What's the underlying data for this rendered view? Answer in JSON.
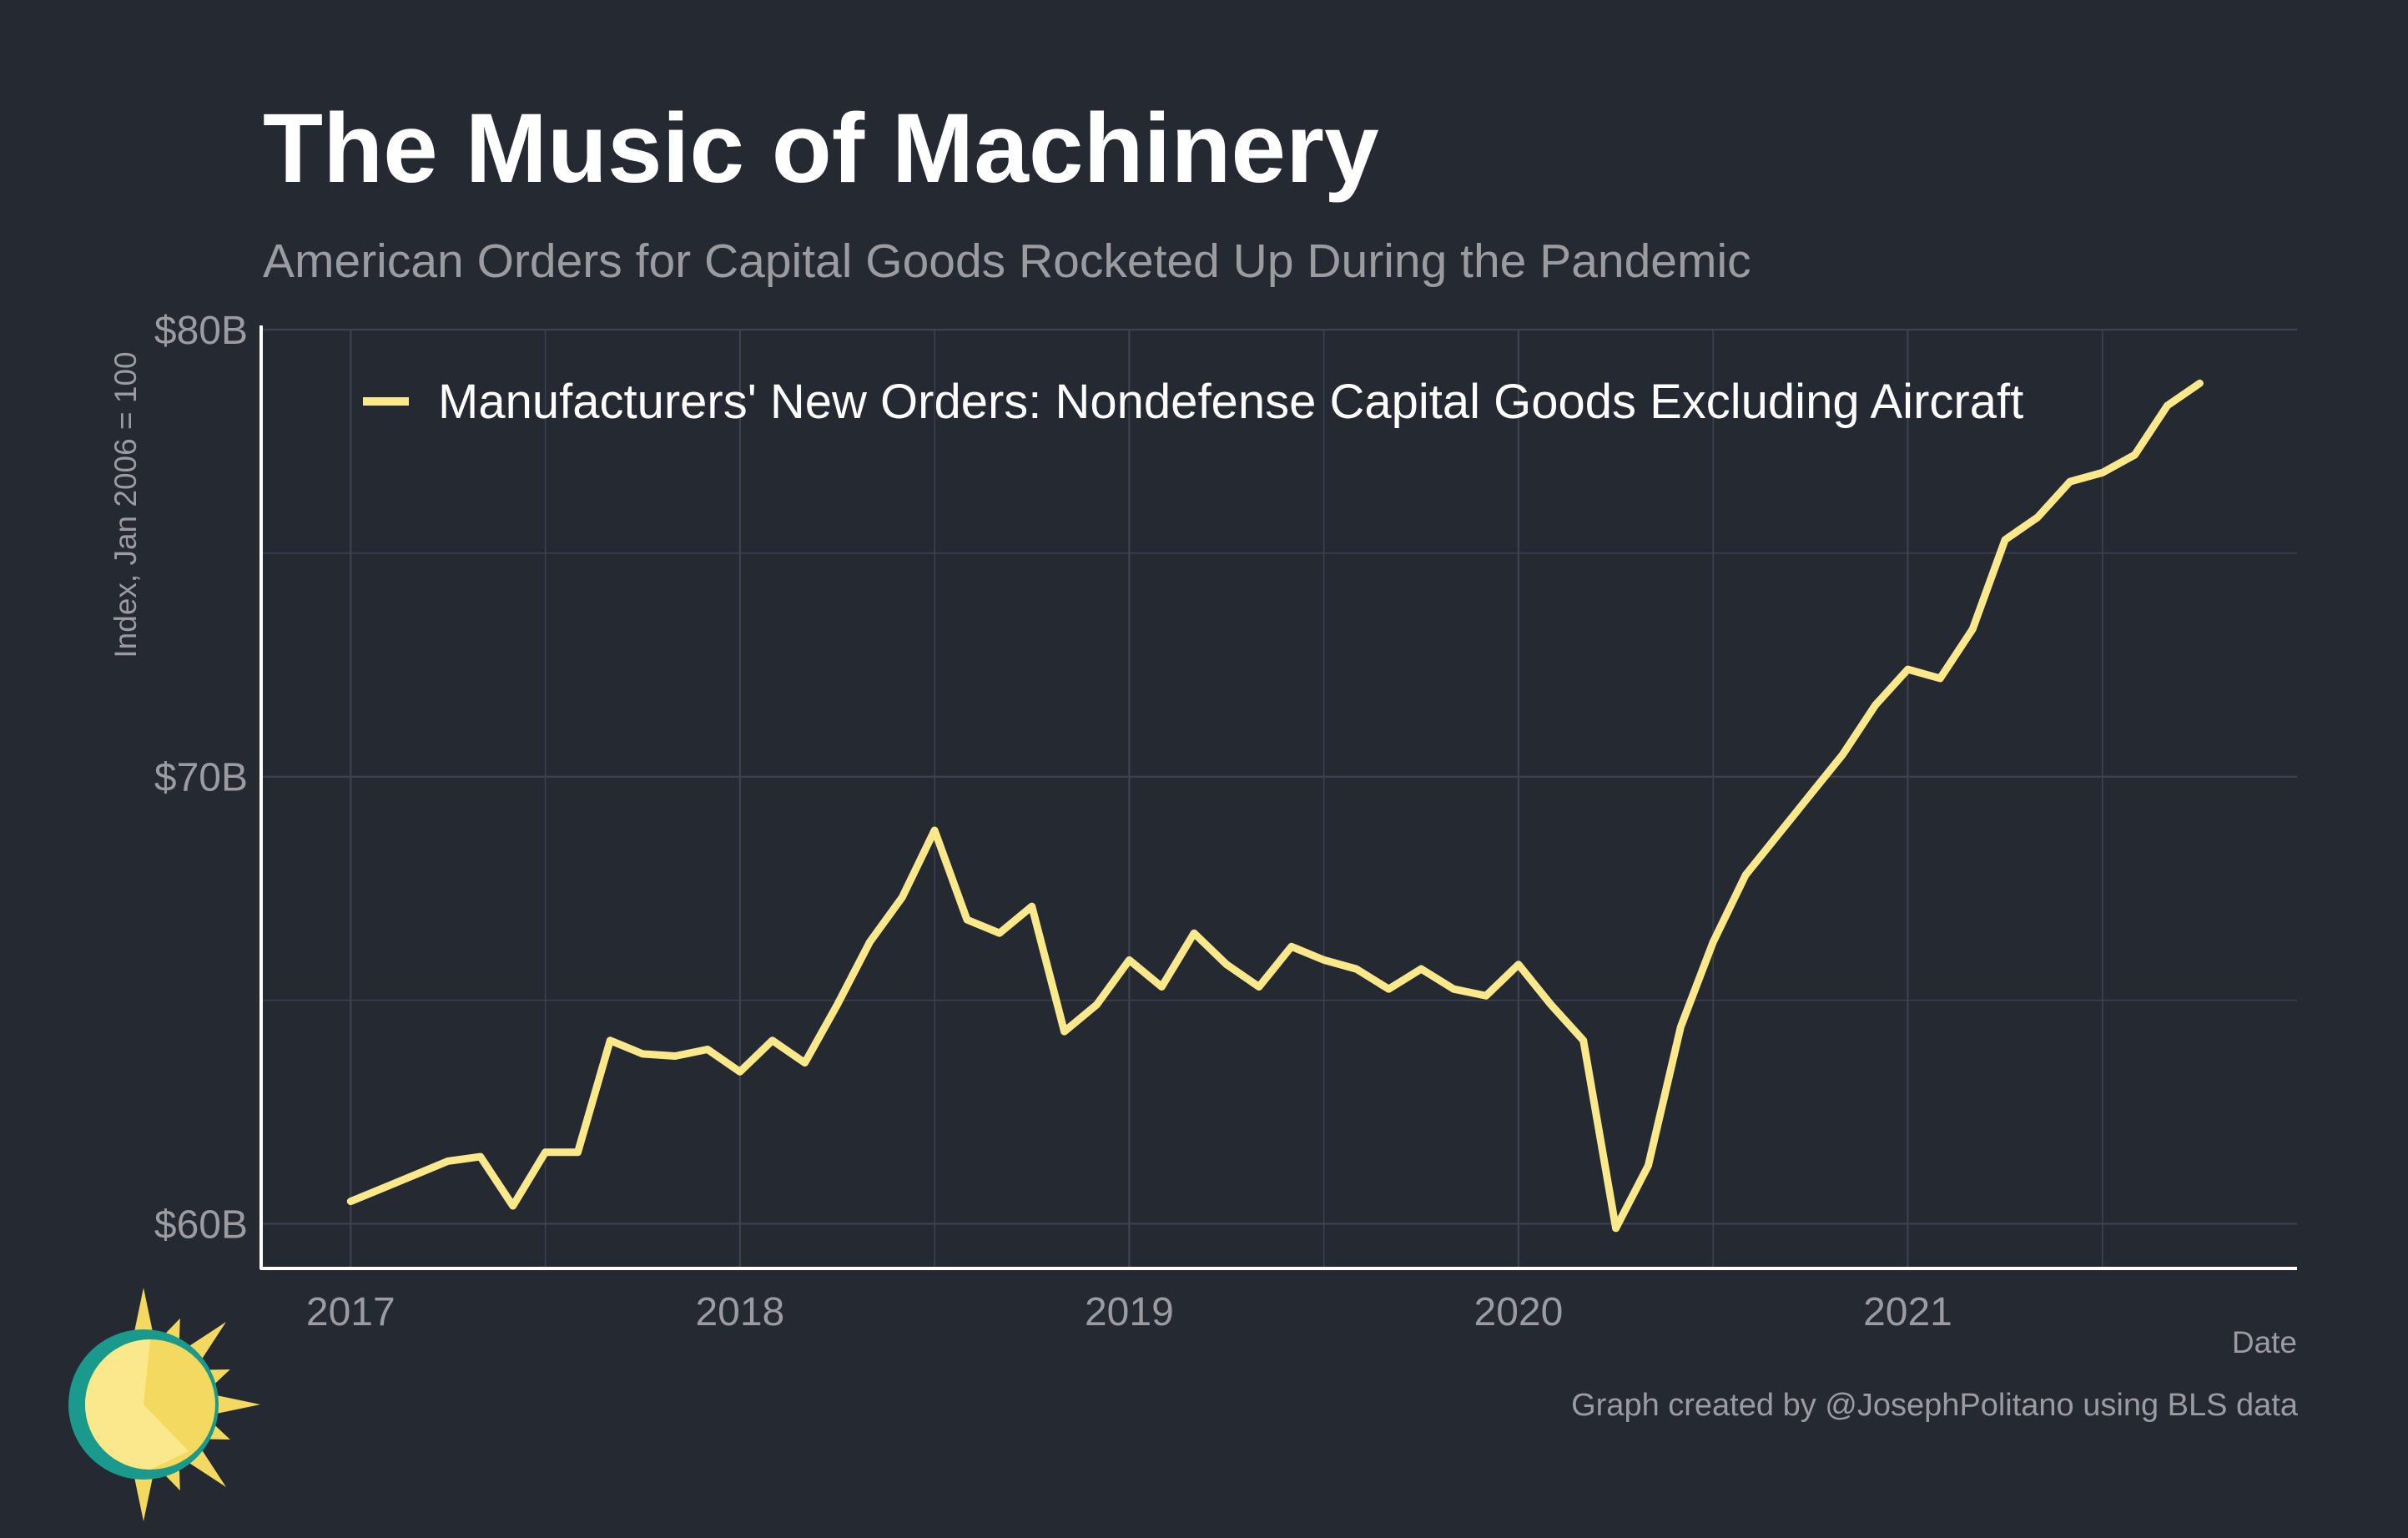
{
  "header": {
    "title": "The Music of Machinery",
    "subtitle": "American Orders for Capital Goods Rocketed Up During the Pandemic"
  },
  "footer": {
    "credit": "Graph created by @JosephPolitano using BLS data"
  },
  "colors": {
    "background": "#252932",
    "line": "#fbe88a",
    "grid": "#3d424c",
    "axis": "#ffffff",
    "muted_text": "#9a9ca2",
    "logo_sun": "#f3d960",
    "logo_ring": "#1a9a8c"
  },
  "logo": {
    "icon": "sun-logo-icon"
  },
  "chart_data": {
    "type": "line",
    "title": "The Music of Machinery",
    "subtitle": "American Orders for Capital Goods Rocketed Up During the Pandemic",
    "xlabel": "Date",
    "ylabel": "Index, Jan 2006 = 100",
    "xlim": [
      2016.77,
      2022.0
    ],
    "ylim": [
      59.0,
      80.0
    ],
    "x_ticks": [
      {
        "value": 2017,
        "label": "2017"
      },
      {
        "value": 2018,
        "label": "2018"
      },
      {
        "value": 2019,
        "label": "2019"
      },
      {
        "value": 2020,
        "label": "2020"
      },
      {
        "value": 2021,
        "label": "2021"
      }
    ],
    "y_ticks": [
      {
        "value": 60,
        "label": "$60B"
      },
      {
        "value": 70,
        "label": "$70B"
      },
      {
        "value": 80,
        "label": "$80B"
      }
    ],
    "minor_y_grid": [
      65,
      75
    ],
    "minor_x_grid": [
      2017.5,
      2018.5,
      2019.5,
      2020.5,
      2021.5
    ],
    "grid": true,
    "legend_position": "top",
    "series": [
      {
        "name": "Manufacturers' New Orders: Nondefense Capital Goods Excluding Aircraft",
        "x_start": 2017.0,
        "x_step_months": 1,
        "values": [
          60.5,
          60.8,
          61.1,
          61.4,
          61.5,
          60.4,
          61.6,
          61.6,
          64.1,
          63.8,
          63.75,
          63.9,
          63.4,
          64.1,
          63.6,
          64.9,
          66.3,
          67.3,
          68.8,
          66.8,
          66.5,
          67.1,
          64.3,
          64.9,
          65.9,
          65.3,
          66.5,
          65.8,
          65.3,
          66.2,
          65.9,
          65.7,
          65.25,
          65.7,
          65.25,
          65.1,
          65.8,
          64.9,
          64.1,
          59.9,
          61.3,
          64.4,
          66.3,
          67.8,
          68.7,
          69.6,
          70.5,
          71.6,
          72.4,
          72.2,
          73.3,
          75.3,
          75.8,
          76.6,
          76.8,
          77.2,
          78.3,
          78.8
        ]
      }
    ]
  }
}
